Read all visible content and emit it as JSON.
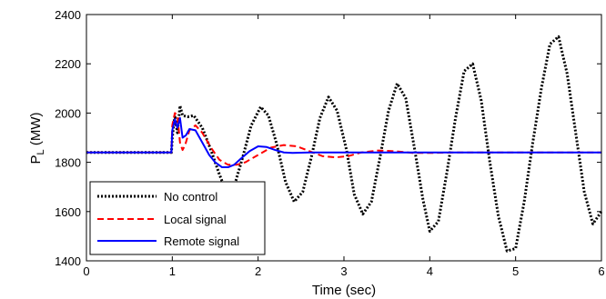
{
  "chart_data": {
    "type": "line",
    "title": "",
    "xlabel": "Time (sec)",
    "ylabel_main": "P",
    "ylabel_sub": "L",
    "ylabel_unit": " (MW)",
    "xlim": [
      0,
      6
    ],
    "ylim": [
      1400,
      2400
    ],
    "xticks": [
      0,
      1,
      2,
      3,
      4,
      5,
      6
    ],
    "yticks": [
      1400,
      1600,
      1800,
      2000,
      2200,
      2400
    ],
    "grid": false,
    "legend_position": "bottom-left",
    "series": [
      {
        "name": "No control",
        "color": "#000000",
        "style": "dotted",
        "x": [
          0,
          0.99,
          1.0,
          1.03,
          1.06,
          1.09,
          1.12,
          1.18,
          1.25,
          1.35,
          1.45,
          1.55,
          1.63,
          1.72,
          1.82,
          1.92,
          2.03,
          2.12,
          2.22,
          2.32,
          2.42,
          2.52,
          2.62,
          2.72,
          2.82,
          2.92,
          3.03,
          3.12,
          3.22,
          3.32,
          3.42,
          3.52,
          3.62,
          3.72,
          3.82,
          3.92,
          4.0,
          4.1,
          4.2,
          4.3,
          4.4,
          4.5,
          4.6,
          4.7,
          4.8,
          4.9,
          5.0,
          5.1,
          5.2,
          5.3,
          5.4,
          5.5,
          5.6,
          5.7,
          5.8,
          5.9,
          6.0
        ],
        "y": [
          1840,
          1840,
          1900,
          1990,
          1920,
          2030,
          1990,
          1985,
          1990,
          1940,
          1850,
          1750,
          1680,
          1700,
          1820,
          1950,
          2025,
          1990,
          1870,
          1720,
          1640,
          1680,
          1820,
          1980,
          2065,
          2010,
          1850,
          1670,
          1590,
          1640,
          1820,
          2010,
          2120,
          2060,
          1860,
          1650,
          1520,
          1560,
          1760,
          1980,
          2170,
          2200,
          2050,
          1800,
          1580,
          1440,
          1450,
          1640,
          1880,
          2100,
          2280,
          2310,
          2160,
          1920,
          1680,
          1550,
          1600
        ]
      },
      {
        "name": "Local signal",
        "color": "#ff0000",
        "style": "dashed",
        "x": [
          0,
          0.99,
          1.0,
          1.03,
          1.06,
          1.09,
          1.12,
          1.15,
          1.2,
          1.27,
          1.35,
          1.45,
          1.55,
          1.65,
          1.75,
          1.85,
          2.0,
          2.15,
          2.3,
          2.45,
          2.6,
          2.75,
          2.9,
          3.05,
          3.2,
          3.4,
          3.6,
          3.8,
          4.0,
          4.3,
          4.6,
          5.0,
          6.0
        ],
        "y": [
          1840,
          1840,
          1950,
          2000,
          1990,
          1880,
          1850,
          1870,
          1930,
          1950,
          1920,
          1860,
          1810,
          1790,
          1790,
          1800,
          1830,
          1860,
          1870,
          1865,
          1845,
          1825,
          1820,
          1825,
          1840,
          1848,
          1845,
          1838,
          1838,
          1840,
          1840,
          1840,
          1840
        ]
      },
      {
        "name": "Remote signal",
        "color": "#0000ff",
        "style": "solid",
        "x": [
          0,
          0.99,
          1.0,
          1.03,
          1.06,
          1.09,
          1.12,
          1.16,
          1.2,
          1.27,
          1.35,
          1.43,
          1.5,
          1.58,
          1.65,
          1.72,
          1.8,
          1.9,
          2.0,
          2.1,
          2.2,
          2.3,
          2.4,
          2.6,
          3.0,
          4.0,
          6.0
        ],
        "y": [
          1840,
          1840,
          1930,
          1975,
          1940,
          1980,
          1900,
          1910,
          1935,
          1930,
          1880,
          1830,
          1800,
          1780,
          1780,
          1790,
          1815,
          1845,
          1865,
          1862,
          1850,
          1840,
          1838,
          1840,
          1840,
          1840,
          1840
        ]
      }
    ]
  }
}
